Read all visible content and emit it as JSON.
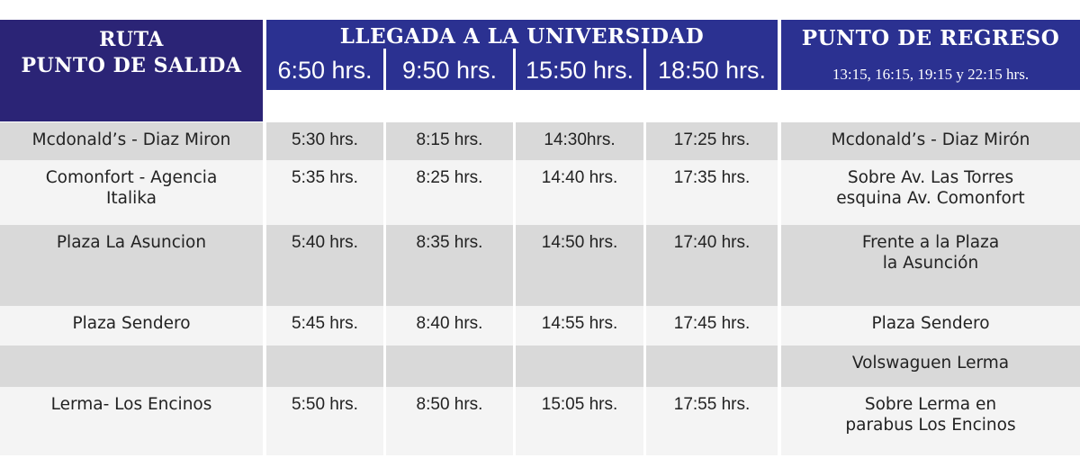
{
  "header": {
    "ruta_line1": "RUTA",
    "ruta_line2": "PUNTO DE SALIDA",
    "llegada": "LLEGADA A LA UNIVERSIDAD",
    "times": [
      "6:50 hrs.",
      "9:50 hrs.",
      "15:50 hrs.",
      "18:50 hrs."
    ],
    "regreso_title": "PUNTO DE REGRESO",
    "regreso_times": "13:15, 16:15, 19:15 y 22:15 hrs."
  },
  "rows": [
    {
      "ruta": [
        "Mcdonald’s - Diaz Miron"
      ],
      "t": [
        "5:30 hrs.",
        "8:15 hrs.",
        "14:30hrs.",
        "17:25 hrs."
      ],
      "regreso": [
        "Mcdonald’s - Diaz Mirón"
      ]
    },
    {
      "ruta": [
        "Comonfort - Agencia",
        "Italika"
      ],
      "t": [
        "5:35 hrs.",
        "8:25 hrs.",
        "14:40 hrs.",
        "17:35 hrs."
      ],
      "regreso": [
        "Sobre Av. Las Torres",
        "esquina Av. Comonfort"
      ]
    },
    {
      "ruta": [
        "Plaza La Asuncion"
      ],
      "t": [
        "5:40 hrs.",
        "8:35 hrs.",
        "14:50 hrs.",
        "17:40 hrs."
      ],
      "regreso": [
        "Frente a la Plaza",
        "la Asunción"
      ]
    },
    {
      "ruta": [
        "Plaza Sendero"
      ],
      "t": [
        "5:45 hrs.",
        "8:40 hrs.",
        "14:55 hrs.",
        "17:45 hrs."
      ],
      "regreso": [
        "Plaza Sendero"
      ]
    },
    {
      "ruta": [
        ""
      ],
      "t": [
        "",
        "",
        "",
        ""
      ],
      "regreso": [
        "Volswaguen Lerma"
      ]
    },
    {
      "ruta": [
        "Lerma- Los Encinos"
      ],
      "t": [
        "5:50 hrs.",
        "8:50 hrs.",
        "15:05 hrs.",
        "17:55 hrs."
      ],
      "regreso": [
        "Sobre Lerma en",
        "parabus Los Encinos"
      ]
    }
  ]
}
